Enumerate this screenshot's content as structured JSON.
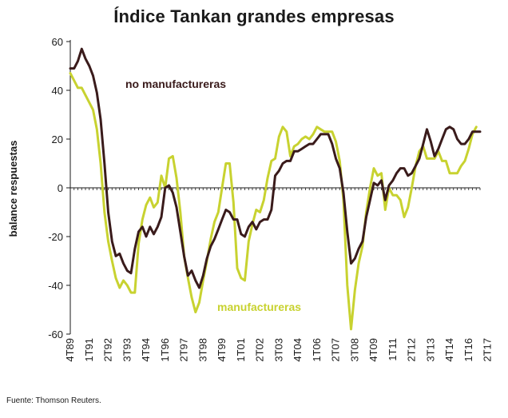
{
  "chart_data": {
    "type": "line",
    "title": "Índice Tankan grandes empresas",
    "xlabel": "",
    "ylabel": "balance respuestas",
    "ylim": [
      -60,
      60
    ],
    "yticks": [
      60,
      40,
      20,
      0,
      -20,
      -40,
      -60
    ],
    "xticks": [
      "4T89",
      "1T91",
      "2T92",
      "3T93",
      "4T94",
      "1T96",
      "2T97",
      "3T98",
      "4T99",
      "1T01",
      "2T02",
      "3T03",
      "4T04",
      "1T06",
      "2T07",
      "3T08",
      "4T09",
      "1T11",
      "2T12",
      "3T13",
      "4T14",
      "1T16",
      "2T17"
    ],
    "x_start": "4T89",
    "frequency": "quarterly",
    "series": [
      {
        "name": "no manufactureras",
        "color": "#3a1b1b",
        "values": [
          49,
          49,
          52,
          57,
          53,
          50,
          46,
          39,
          28,
          10,
          -10,
          -22,
          -28,
          -27,
          -31,
          -34,
          -35,
          -25,
          -18,
          -16,
          -20,
          -16,
          -19,
          -16,
          -12,
          0,
          1,
          -2,
          -8,
          -18,
          -28,
          -36,
          -34,
          -38,
          -41,
          -36,
          -29,
          -24,
          -21,
          -17,
          -13,
          -9,
          -10,
          -13,
          -13,
          -19,
          -20,
          -16,
          -14,
          -17,
          -14,
          -13,
          -13,
          -9,
          5,
          7,
          10,
          11,
          11,
          15,
          15,
          16,
          17,
          18,
          18,
          20,
          22,
          22,
          22,
          18,
          12,
          8,
          -2,
          -18,
          -31,
          -29,
          -25,
          -22,
          -12,
          -5,
          2,
          1,
          3,
          -5,
          1,
          3,
          6,
          8,
          8,
          5,
          6,
          9,
          12,
          18,
          24,
          19,
          13,
          16,
          20,
          24,
          25,
          24,
          20,
          18,
          18,
          20,
          23,
          23,
          23
        ],
        "label": "no manufactureras"
      },
      {
        "name": "manufactureras",
        "color": "#c8d230",
        "values": [
          47,
          44,
          41,
          41,
          38,
          35,
          32,
          24,
          10,
          -10,
          -22,
          -30,
          -37,
          -41,
          -38,
          -40,
          -43,
          -43,
          -23,
          -13,
          -7,
          -4,
          -8,
          -6,
          5,
          0,
          12,
          13,
          4,
          -10,
          -28,
          -37,
          -45,
          -51,
          -47,
          -38,
          -30,
          -21,
          -14,
          -10,
          0,
          10,
          10,
          -6,
          -33,
          -37,
          -38,
          -22,
          -15,
          -9,
          -10,
          -5,
          4,
          11,
          12,
          21,
          25,
          23,
          13,
          17,
          18,
          20,
          21,
          20,
          22,
          25,
          24,
          23,
          23,
          23,
          19,
          11,
          -5,
          -40,
          -58,
          -42,
          -31,
          -24,
          -10,
          0,
          8,
          5,
          6,
          -9,
          0,
          -3,
          -3,
          -5,
          -12,
          -8,
          0,
          9,
          15,
          17,
          12,
          12,
          12,
          15,
          11,
          11,
          6,
          6,
          6,
          9,
          11,
          16,
          22,
          25
        ],
        "label": "manufactureras"
      }
    ],
    "source": "Fuente: Thomson Reuters."
  },
  "colors": {
    "axis": "#1a1a1a",
    "nonmanu": "#3a1b1b",
    "manu": "#c8d230"
  }
}
